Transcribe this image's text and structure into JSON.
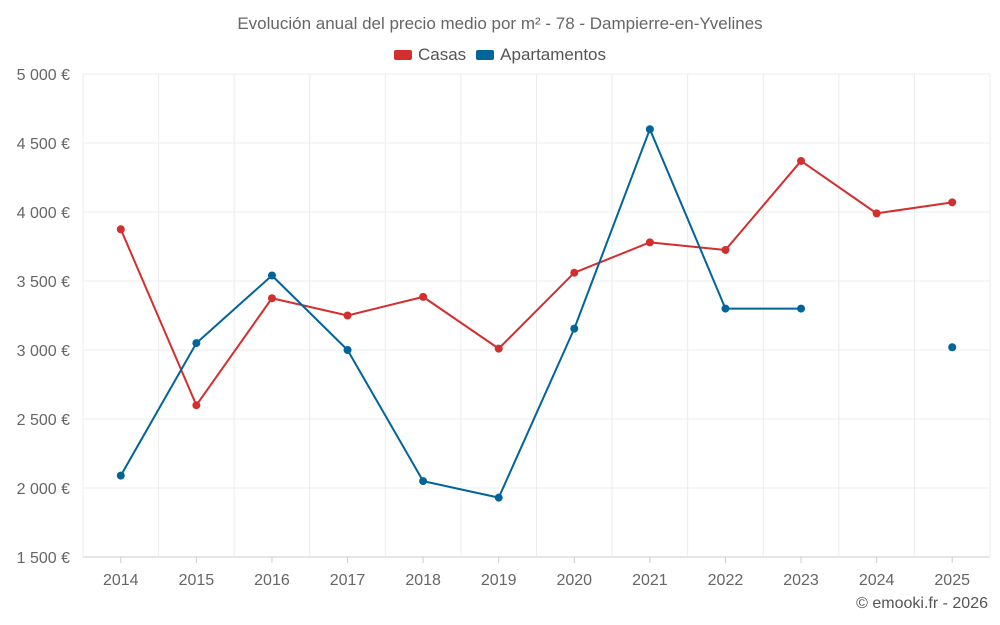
{
  "chart_data": {
    "type": "line",
    "title": "Evolución anual del precio medio por m² - 78 - Dampierre-en-Yvelines",
    "categories": [
      "2014",
      "2015",
      "2016",
      "2017",
      "2018",
      "2019",
      "2020",
      "2021",
      "2022",
      "2023",
      "2024",
      "2025"
    ],
    "ylim": [
      1500,
      5000
    ],
    "y_ticks": [
      1500,
      2000,
      2500,
      3000,
      3500,
      4000,
      4500,
      5000
    ],
    "y_tick_labels": [
      "1 500 €",
      "2 000 €",
      "2 500 €",
      "3 000 €",
      "3 500 €",
      "4 000 €",
      "4 500 €",
      "5 000 €"
    ],
    "grid": true,
    "legend_position": "top-center",
    "series": [
      {
        "name": "Casas",
        "color": "#d32f2f",
        "values": [
          3875,
          2600,
          3375,
          3250,
          3385,
          3010,
          3560,
          3780,
          3725,
          4370,
          3990,
          4070
        ]
      },
      {
        "name": "Apartamentos",
        "color": "#01649b",
        "values": [
          2090,
          3050,
          3540,
          3000,
          2050,
          1930,
          3155,
          4600,
          3300,
          3300,
          null,
          3020
        ]
      }
    ]
  },
  "footer": {
    "credit": "© emooki.fr - 2026"
  }
}
